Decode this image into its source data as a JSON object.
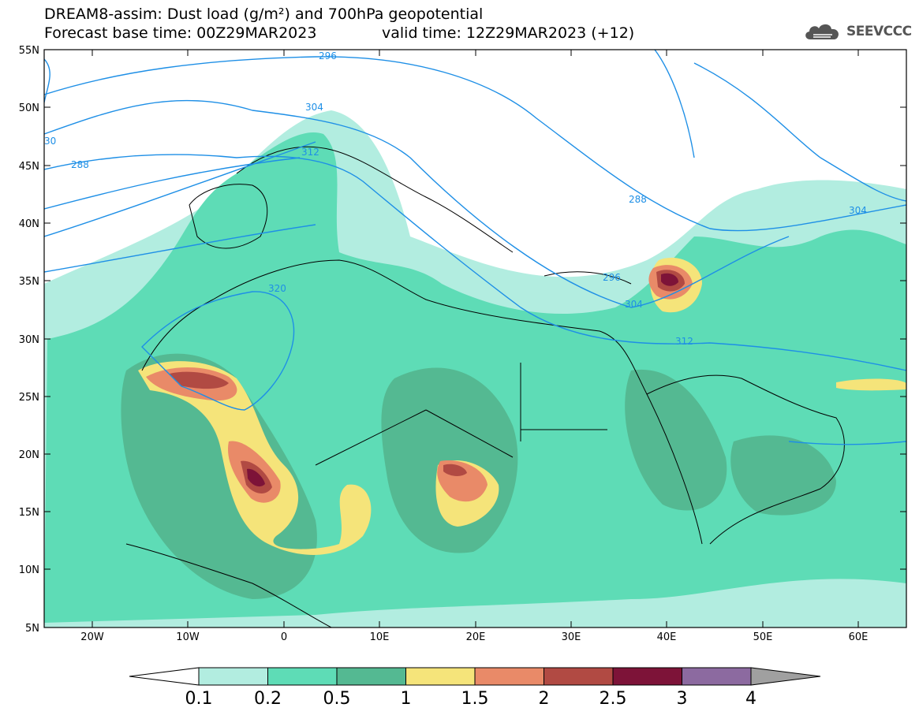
{
  "header": {
    "line1": "DREAM8-assim: Dust load (g/m²) and 700hPa geopotential",
    "line2": "Forecast base time: 00Z29MAR2023",
    "valid": "valid time: 12Z29MAR2023 (+12)"
  },
  "logo": {
    "text": "SEEVCCC",
    "icon": "cloud-icon"
  },
  "map": {
    "lon_range": [
      -25,
      65
    ],
    "lat_range": [
      5,
      55
    ],
    "lat_ticks": [
      "55N",
      "50N",
      "45N",
      "40N",
      "35N",
      "30N",
      "25N",
      "20N",
      "15N",
      "10N",
      "5N"
    ],
    "lon_ticks": [
      "20W",
      "10W",
      "0",
      "10E",
      "20E",
      "30E",
      "40E",
      "50E",
      "60E"
    ]
  },
  "contours": [
    {
      "label": "296"
    },
    {
      "label": "304"
    },
    {
      "label": "312"
    },
    {
      "label": "288"
    },
    {
      "label": "30"
    },
    {
      "label": "288"
    },
    {
      "label": "320"
    },
    {
      "label": "296"
    },
    {
      "label": "304"
    },
    {
      "label": "312"
    },
    {
      "label": "304"
    }
  ],
  "colorbar": {
    "labels": [
      "0.1",
      "0.2",
      "0.5",
      "1",
      "1.5",
      "2",
      "2.5",
      "3",
      "4"
    ],
    "colors": [
      "#b2ede0",
      "#5edcb6",
      "#54b992",
      "#f5e47a",
      "#e98a68",
      "#b14a43",
      "#7d1338",
      "#8c6aa0",
      "#a0a0a0"
    ]
  }
}
